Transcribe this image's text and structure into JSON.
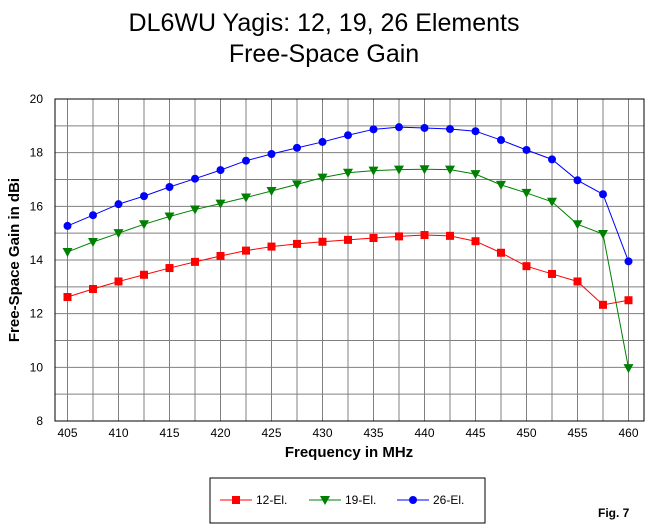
{
  "chart_data": {
    "type": "line",
    "title": "DL6WU Yagis:  12, 19, 26 Elements",
    "subtitle": "Free-Space Gain",
    "xlabel": "Frequency in MHz",
    "ylabel": "Free-Space Gain in dBi",
    "xlim": [
      405,
      460
    ],
    "ylim": [
      8,
      20
    ],
    "xticks": [
      405,
      410,
      415,
      420,
      425,
      430,
      435,
      440,
      445,
      450,
      455,
      460
    ],
    "yticks": [
      8,
      10,
      12,
      14,
      16,
      18,
      20
    ],
    "grid": true,
    "legend_position": "bottom-center",
    "figure_label": "Fig. 7",
    "x": [
      405,
      407.5,
      410,
      412.5,
      415,
      417.5,
      420,
      422.5,
      425,
      427.5,
      430,
      432.5,
      435,
      437.5,
      440,
      442.5,
      445,
      447.5,
      450,
      452.5,
      455,
      457.5,
      460
    ],
    "series": [
      {
        "name": "12-El.",
        "color": "#ff0000",
        "marker": "square",
        "values": [
          12.62,
          12.92,
          13.2,
          13.45,
          13.7,
          13.93,
          14.15,
          14.35,
          14.5,
          14.6,
          14.68,
          14.75,
          14.82,
          14.88,
          14.93,
          14.9,
          14.7,
          14.27,
          13.77,
          13.48,
          13.2,
          12.33,
          12.5
        ]
      },
      {
        "name": "19-El.",
        "color": "#008000",
        "marker": "triangle-down",
        "values": [
          14.3,
          14.67,
          15.0,
          15.33,
          15.62,
          15.88,
          16.1,
          16.33,
          16.57,
          16.82,
          17.07,
          17.25,
          17.33,
          17.37,
          17.38,
          17.37,
          17.2,
          16.8,
          16.5,
          16.17,
          15.33,
          14.97,
          9.97
        ]
      },
      {
        "name": "26-El.",
        "color": "#0000ff",
        "marker": "circle",
        "values": [
          15.27,
          15.67,
          16.08,
          16.38,
          16.72,
          17.03,
          17.35,
          17.7,
          17.95,
          18.18,
          18.4,
          18.65,
          18.87,
          18.95,
          18.92,
          18.88,
          18.8,
          18.47,
          18.1,
          17.75,
          16.97,
          16.45,
          13.95
        ]
      }
    ]
  }
}
